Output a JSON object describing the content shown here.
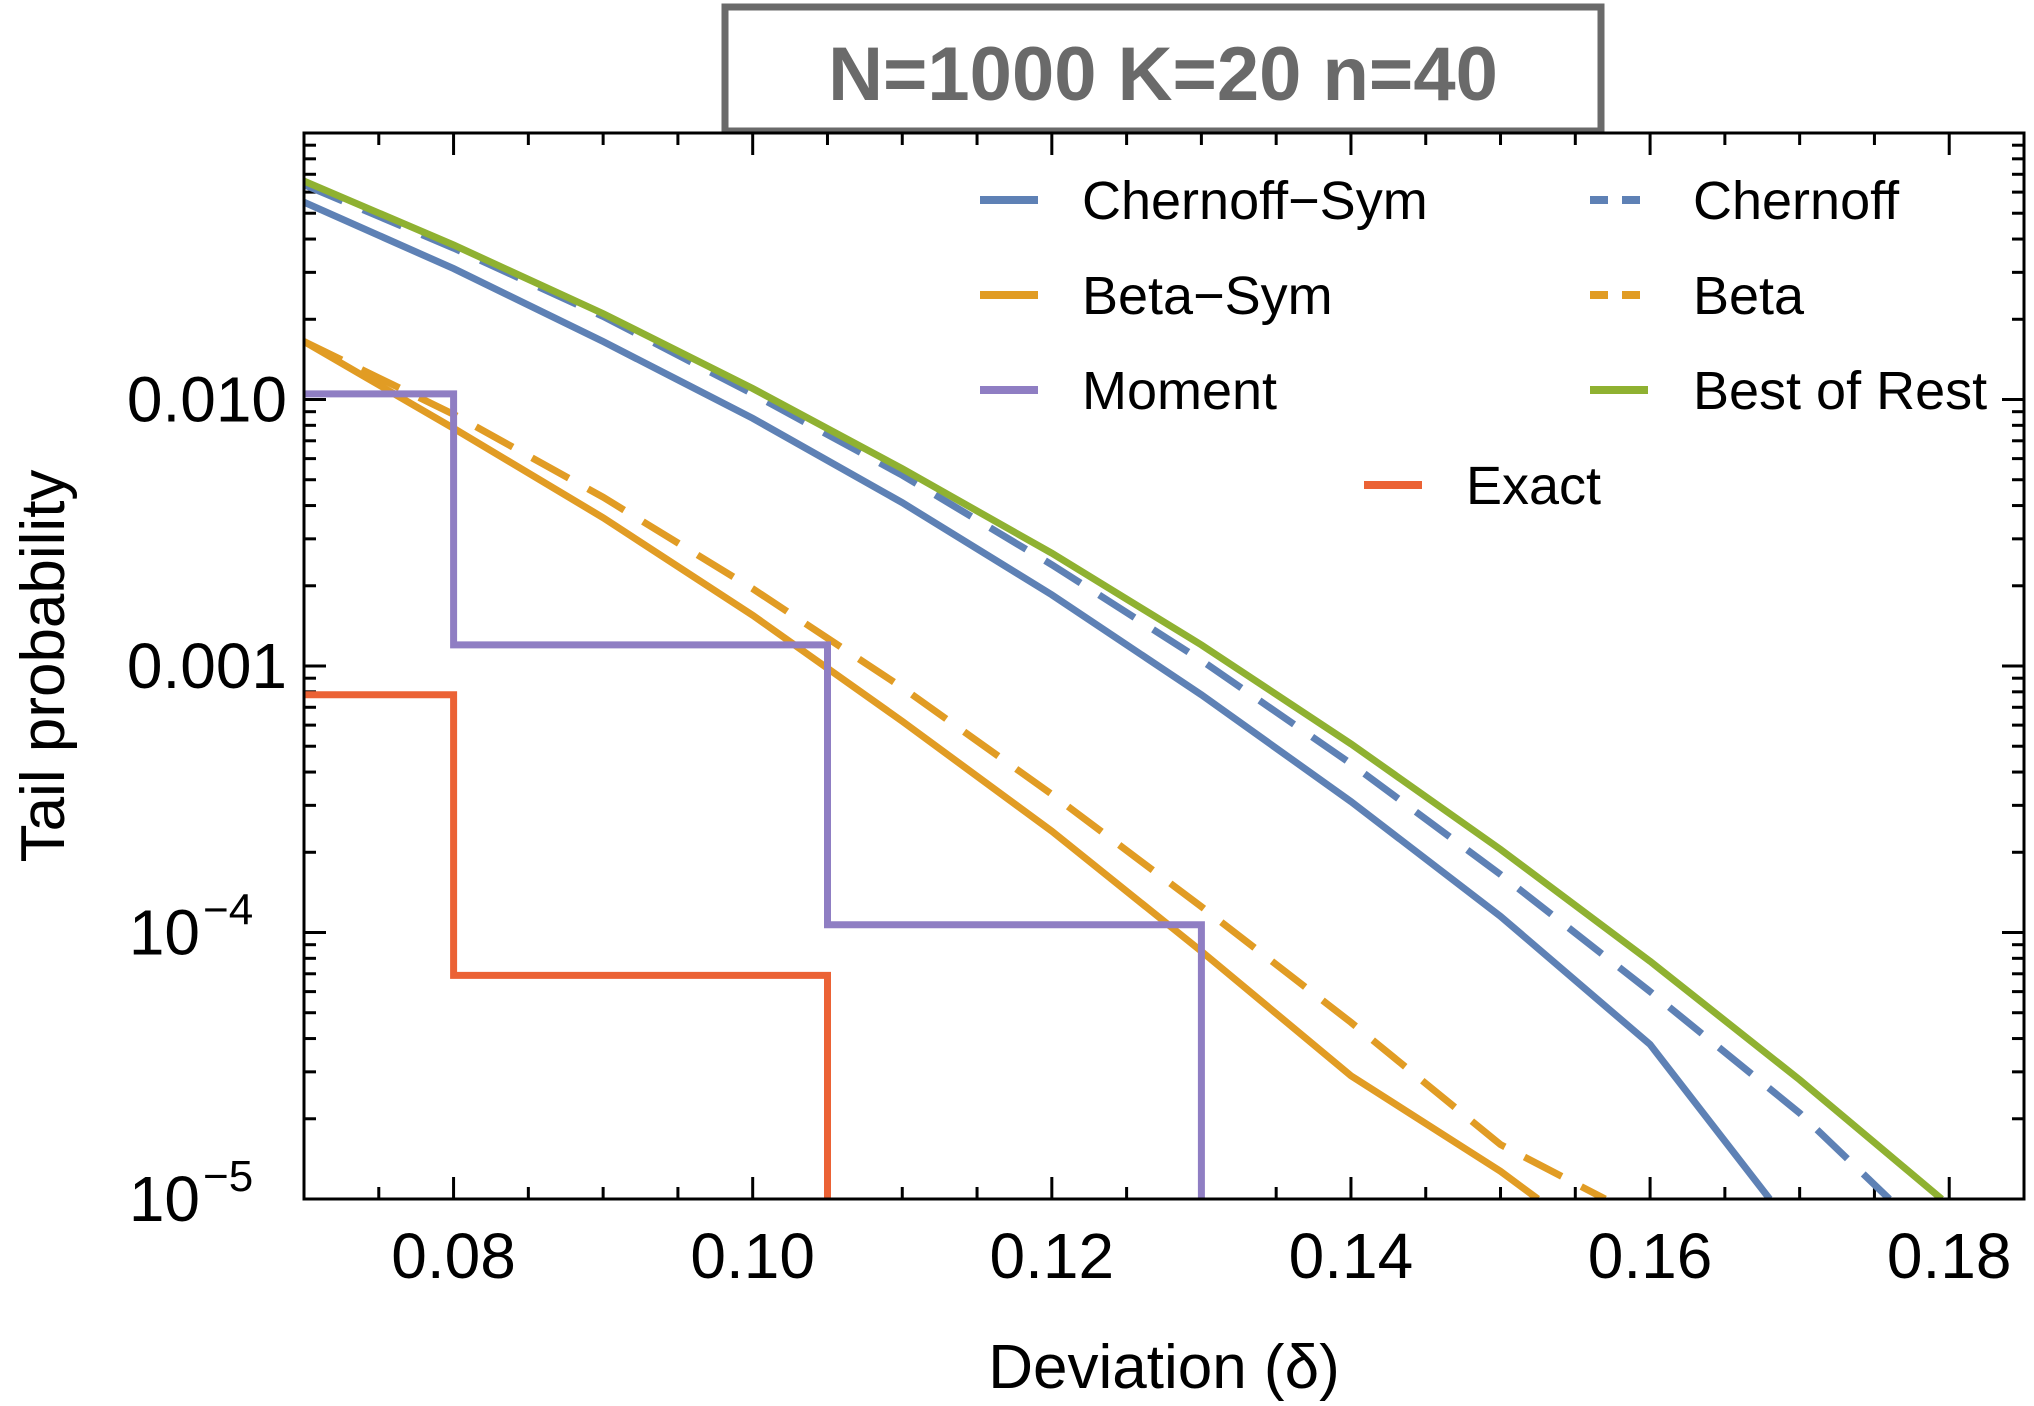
{
  "chart_data": {
    "type": "line",
    "title": "N=1000  K=20  n=40",
    "xlabel": "Deviation (δ)",
    "ylabel": "Tail probability",
    "yscale": "log",
    "xlim": [
      0.07,
      0.185
    ],
    "ylim": [
      1e-05,
      0.1
    ],
    "x_ticks": [
      0.08,
      0.1,
      0.12,
      0.14,
      0.16,
      0.18
    ],
    "x_tick_labels": [
      "0.08",
      "0.10",
      "0.12",
      "0.14",
      "0.16",
      "0.18"
    ],
    "y_ticks": [
      {
        "value": 0.01,
        "label": "0.010",
        "exp": ""
      },
      {
        "value": 0.001,
        "label": "0.001",
        "exp": ""
      },
      {
        "value": 0.0001,
        "label": "10",
        "exp": "−4"
      },
      {
        "value": 1e-05,
        "label": "10",
        "exp": "−5"
      }
    ],
    "grid": false,
    "legend_position": "top-right",
    "series": [
      {
        "name": "Chernoff−Sym",
        "color": "#5E81B5",
        "dash": "solid",
        "x": [
          0.07,
          0.08,
          0.09,
          0.1,
          0.11,
          0.12,
          0.13,
          0.14,
          0.15,
          0.16,
          0.168
        ],
        "y": [
          0.055,
          0.031,
          0.0165,
          0.0085,
          0.0041,
          0.00185,
          0.00078,
          0.00031,
          0.000115,
          3.8e-05,
          1e-05
        ]
      },
      {
        "name": "Chernoff",
        "color": "#5E81B5",
        "dash": "dashed",
        "x": [
          0.07,
          0.08,
          0.09,
          0.1,
          0.11,
          0.12,
          0.13,
          0.14,
          0.15,
          0.16,
          0.17,
          0.176
        ],
        "y": [
          0.064,
          0.037,
          0.0205,
          0.0105,
          0.0052,
          0.0024,
          0.00105,
          0.00043,
          0.000165,
          6e-05,
          2.1e-05,
          1e-05
        ]
      },
      {
        "name": "Beta−Sym",
        "color": "#E19C24",
        "dash": "solid",
        "x": [
          0.07,
          0.08,
          0.09,
          0.1,
          0.11,
          0.12,
          0.13,
          0.14,
          0.15,
          0.1525
        ],
        "y": [
          0.0165,
          0.0078,
          0.0036,
          0.00155,
          0.00062,
          0.00024,
          8.5e-05,
          2.9e-05,
          1.27e-05,
          1e-05
        ]
      },
      {
        "name": "Beta",
        "color": "#E19C24",
        "dash": "dashed",
        "x": [
          0.07,
          0.08,
          0.09,
          0.1,
          0.11,
          0.12,
          0.13,
          0.14,
          0.15,
          0.157
        ],
        "y": [
          0.0165,
          0.0088,
          0.0043,
          0.00195,
          0.00083,
          0.00033,
          0.000125,
          4.6e-05,
          1.6e-05,
          1e-05
        ]
      },
      {
        "name": "Moment",
        "color": "#8F7EC3",
        "dash": "solid",
        "step": true,
        "x": [
          0.07,
          0.08,
          0.08,
          0.105,
          0.105,
          0.13,
          0.13
        ],
        "y": [
          0.0105,
          0.0105,
          0.0012,
          0.0012,
          0.000107,
          0.000107,
          1e-05
        ]
      },
      {
        "name": "Best of Rest",
        "color": "#8FB131",
        "dash": "solid",
        "x": [
          0.07,
          0.08,
          0.09,
          0.1,
          0.11,
          0.12,
          0.13,
          0.14,
          0.15,
          0.16,
          0.17,
          0.1795
        ],
        "y": [
          0.066,
          0.038,
          0.021,
          0.011,
          0.0055,
          0.00265,
          0.0012,
          0.00051,
          0.000205,
          7.8e-05,
          2.8e-05,
          1e-05
        ]
      },
      {
        "name": "Exact",
        "color": "#EB6235",
        "dash": "solid",
        "step": true,
        "x": [
          0.07,
          0.08,
          0.08,
          0.105,
          0.105
        ],
        "y": [
          0.00078,
          0.00078,
          6.9e-05,
          6.9e-05,
          1e-05
        ]
      }
    ],
    "legend_order": [
      "Chernoff−Sym",
      "Chernoff",
      "Beta−Sym",
      "Beta",
      "Moment",
      "Best of Rest",
      "Exact"
    ]
  }
}
